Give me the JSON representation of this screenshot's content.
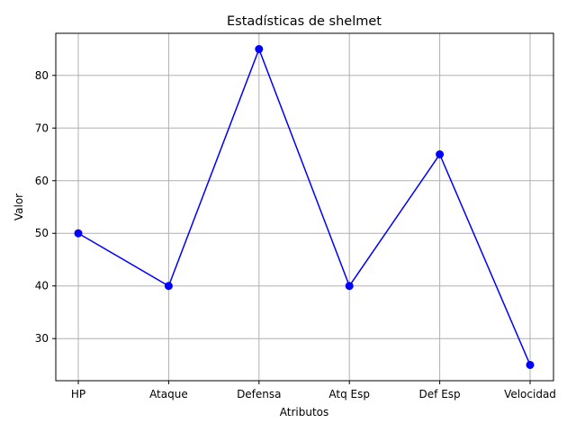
{
  "chart_data": {
    "type": "line",
    "title": "Estadísticas de shelmet",
    "xlabel": "Atributos",
    "ylabel": "Valor",
    "categories": [
      "HP",
      "Ataque",
      "Defensa",
      "Atq Esp",
      "Def Esp",
      "Velocidad"
    ],
    "series": [
      {
        "values": [
          50,
          40,
          85,
          40,
          65,
          25
        ],
        "color": "#0000ff",
        "marker": "circle"
      }
    ],
    "ylim": [
      22,
      88
    ],
    "yticks": [
      30,
      40,
      50,
      60,
      70,
      80
    ],
    "grid": true,
    "grid_color": "#b0b0b0"
  }
}
